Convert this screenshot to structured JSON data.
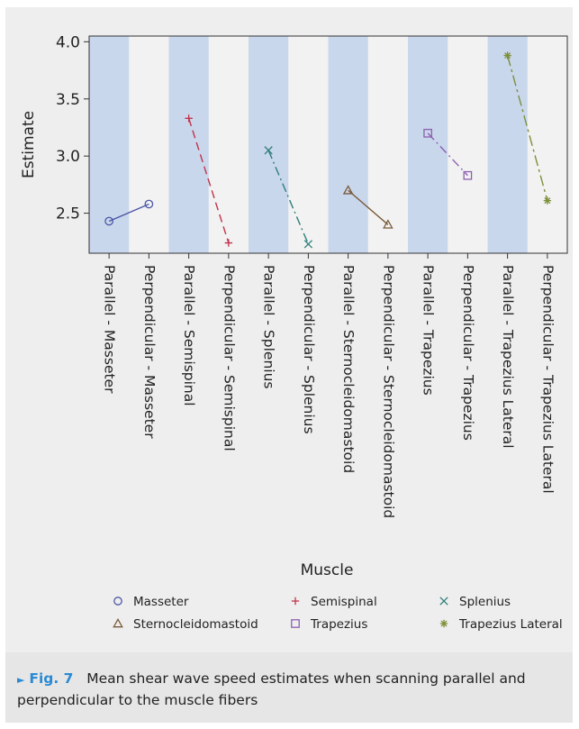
{
  "chart_data": {
    "type": "line",
    "ylabel": "Estimate",
    "xlabel": "Muscle",
    "ylim": [
      2.15,
      4.05
    ],
    "yticks": [
      2.5,
      3.0,
      3.5,
      4.0
    ],
    "categories": [
      "Parallel - Masseter",
      "Perpendicular - Masseter",
      "Parallel - Semispinal",
      "Perpendicular - Semispinal",
      "Parallel - Splenius",
      "Perpendicular - Splenius",
      "Parallel - Sternocleidomastoid",
      "Perpendicular - Sternocleidomastoid",
      "Parallel - Trapezius",
      "Perpendicular - Trapezius",
      "Parallel - Trapezius Lateral",
      "Perpendicular - Trapezius Lateral"
    ],
    "series": [
      {
        "name": "Masseter",
        "x": [
          0,
          1
        ],
        "values": [
          2.43,
          2.58
        ],
        "color": "#4a56a6",
        "marker": "circle",
        "dash": "solid"
      },
      {
        "name": "Semispinal",
        "x": [
          2,
          3
        ],
        "values": [
          3.33,
          2.24
        ],
        "color": "#c0334a",
        "marker": "plus",
        "dash": "long-dash"
      },
      {
        "name": "Splenius",
        "x": [
          4,
          5
        ],
        "values": [
          3.05,
          2.23
        ],
        "color": "#2f7e7a",
        "marker": "x",
        "dash": "dash-dot"
      },
      {
        "name": "Sternocleidomastoid",
        "x": [
          6,
          7
        ],
        "values": [
          2.7,
          2.4
        ],
        "color": "#7a5a3a",
        "marker": "triangle",
        "dash": "solid"
      },
      {
        "name": "Trapezius",
        "x": [
          8,
          9
        ],
        "values": [
          3.2,
          2.83
        ],
        "color": "#8c5fb0",
        "marker": "square",
        "dash": "dash-dot"
      },
      {
        "name": "Trapezius Lateral",
        "x": [
          10,
          11
        ],
        "values": [
          3.88,
          2.61
        ],
        "color": "#7d8f3a",
        "marker": "star",
        "dash": "long-dash-dot"
      }
    ],
    "band_color": "#c9d7ec",
    "legend_position": "bottom"
  },
  "caption": {
    "marker": "►",
    "label": "Fig. 7",
    "text": "Mean shear wave speed estimates when scanning parallel and perpendicular to the muscle fibers"
  }
}
